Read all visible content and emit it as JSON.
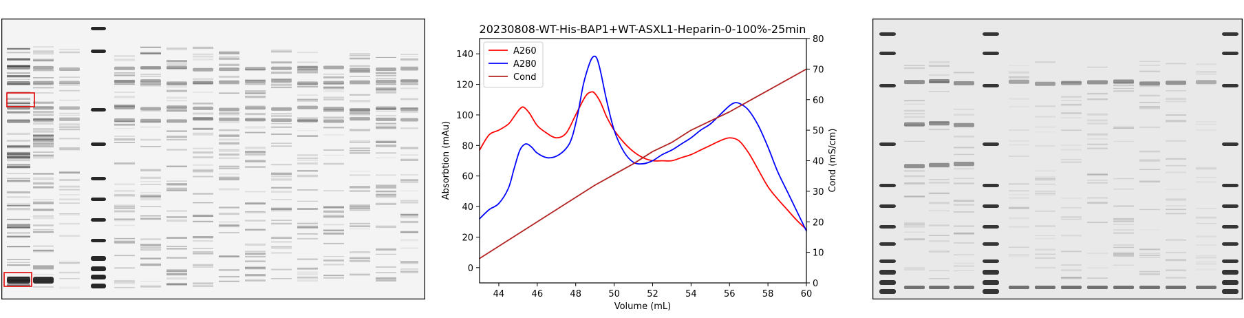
{
  "chart_data": {
    "type": "line",
    "title": "20230808-WT-His-BAP1+WT-ASXL1-Heparin-0-100%-25min",
    "xlabel": "Volume (mL)",
    "ylabel": "Absorbtion (mAu)",
    "y2label": "Cond (mS/cm)",
    "xlim": [
      43,
      60
    ],
    "ylim": [
      -10,
      150
    ],
    "y2lim": [
      0,
      80
    ],
    "xticks": [
      44,
      46,
      48,
      50,
      52,
      54,
      56,
      58,
      60
    ],
    "yticks": [
      0,
      20,
      40,
      60,
      80,
      100,
      120,
      140
    ],
    "y2ticks": [
      0,
      10,
      20,
      30,
      40,
      50,
      60,
      70,
      80
    ],
    "legend_position": "top-left",
    "grid": false,
    "series": [
      {
        "name": "A260",
        "color": "#ff0000",
        "axis": "left",
        "x": [
          43.0,
          43.5,
          44.0,
          44.5,
          44.8,
          45.1,
          45.3,
          45.6,
          46.0,
          46.5,
          47.0,
          47.5,
          48.0,
          48.5,
          48.8,
          49.0,
          49.3,
          49.6,
          50.0,
          50.5,
          51.0,
          51.5,
          52.0,
          52.5,
          53.0,
          53.5,
          54.0,
          54.5,
          55.0,
          55.5,
          56.0,
          56.5,
          57.0,
          57.5,
          58.0,
          58.5,
          59.0,
          59.5,
          60.0
        ],
        "y": [
          77,
          87,
          90,
          94,
          99,
          104,
          105,
          101,
          93,
          88,
          85,
          88,
          100,
          112,
          115,
          114,
          108,
          99,
          90,
          82,
          76,
          72,
          70,
          70,
          70,
          72,
          74,
          77,
          80,
          83,
          85,
          83,
          75,
          64,
          53,
          45,
          38,
          31,
          25
        ]
      },
      {
        "name": "A280",
        "color": "#0000ff",
        "axis": "left",
        "x": [
          43.0,
          43.5,
          44.0,
          44.5,
          44.8,
          45.1,
          45.4,
          45.7,
          46.0,
          46.5,
          47.0,
          47.5,
          47.8,
          48.1,
          48.4,
          48.7,
          48.9,
          49.1,
          49.3,
          49.6,
          50.0,
          50.5,
          51.0,
          51.5,
          52.0,
          52.5,
          53.0,
          53.5,
          54.0,
          54.5,
          55.0,
          55.5,
          56.0,
          56.3,
          56.6,
          57.0,
          57.5,
          58.0,
          58.5,
          59.0,
          59.5,
          60.0
        ],
        "y": [
          32,
          38,
          42,
          52,
          65,
          77,
          81,
          79,
          75,
          72,
          73,
          78,
          85,
          100,
          120,
          133,
          138,
          137,
          128,
          110,
          90,
          76,
          69,
          68,
          70,
          74,
          77,
          81,
          85,
          90,
          94,
          100,
          106,
          108,
          107,
          103,
          93,
          79,
          63,
          50,
          37,
          24
        ]
      },
      {
        "name": "Cond",
        "color": "#b22222",
        "axis": "right",
        "x": [
          43,
          44,
          45,
          46,
          47,
          48,
          49,
          50,
          51,
          52,
          53,
          54,
          55,
          56,
          57,
          58,
          59,
          60
        ],
        "y": [
          8,
          12,
          16,
          20,
          24,
          28,
          32,
          35.5,
          39,
          43,
          46,
          50,
          53,
          56,
          59.5,
          63,
          66.5,
          70
        ]
      }
    ]
  }
}
